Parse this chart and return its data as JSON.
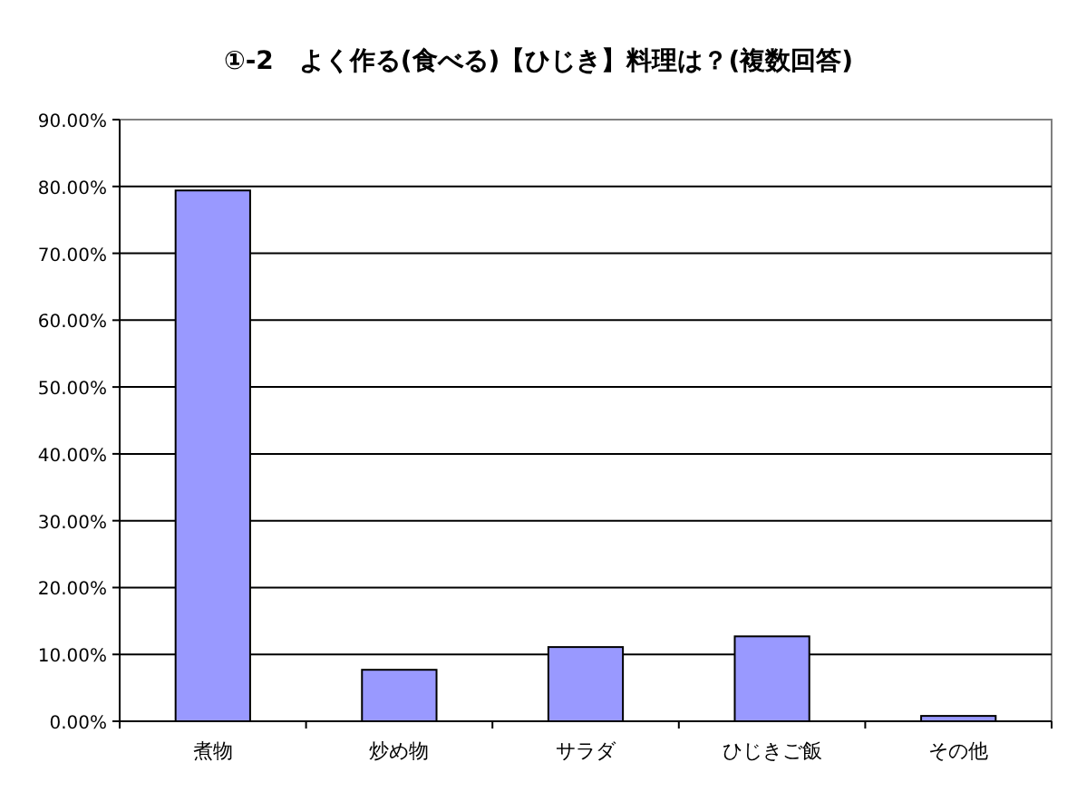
{
  "chart_data": {
    "type": "bar",
    "title": "①-2　よく作る(食べる)【ひじき】料理は？(複数回答)",
    "categories": [
      "煮物",
      "炒め物",
      "サラダ",
      "ひじきご飯",
      "その他"
    ],
    "values": [
      79.4,
      7.7,
      11.1,
      12.7,
      0.8
    ],
    "color": "#9999ff",
    "ylim": [
      0,
      90
    ],
    "yticks": [
      {
        "value": 0,
        "label": "0.00%"
      },
      {
        "value": 10,
        "label": "10.00%"
      },
      {
        "value": 20,
        "label": "20.00%"
      },
      {
        "value": 30,
        "label": "30.00%"
      },
      {
        "value": 40,
        "label": "40.00%"
      },
      {
        "value": 50,
        "label": "50.00%"
      },
      {
        "value": 60,
        "label": "60.00%"
      },
      {
        "value": 70,
        "label": "70.00%"
      },
      {
        "value": 80,
        "label": "80.00%"
      },
      {
        "value": 90,
        "label": "90.00%"
      }
    ],
    "grid": "y"
  }
}
